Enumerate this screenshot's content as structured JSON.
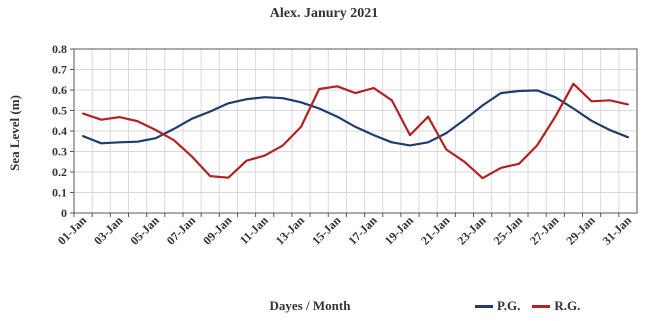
{
  "chart_data": {
    "type": "line",
    "title": "Alex. Janury 2021",
    "xlabel": "Dayes / Month",
    "ylabel": "Sea Level (m)",
    "ylim": [
      0,
      0.8
    ],
    "yticks": [
      "0",
      "0.1",
      "0.2",
      "0.3",
      "0.4",
      "0.5",
      "0.6",
      "0.7",
      "0.8"
    ],
    "yticks_values": [
      0,
      0.1,
      0.2,
      0.3,
      0.4,
      0.5,
      0.6,
      0.7,
      0.8
    ],
    "grid": true,
    "legend_position": "bottom-right",
    "x": [
      "01-Jan",
      "02-Jan",
      "03-Jan",
      "04-Jan",
      "05-Jan",
      "06-Jan",
      "07-Jan",
      "08-Jan",
      "09-Jan",
      "10-Jan",
      "11-Jan",
      "12-Jan",
      "13-Jan",
      "14-Jan",
      "15-Jan",
      "16-Jan",
      "17-Jan",
      "18-Jan",
      "19-Jan",
      "20-Jan",
      "21-Jan",
      "22-Jan",
      "23-Jan",
      "24-Jan",
      "25-Jan",
      "26-Jan",
      "27-Jan",
      "28-Jan",
      "29-Jan",
      "30-Jan",
      "31-Jan"
    ],
    "x_tick_labels": [
      "01-Jan",
      "03-Jan",
      "05-Jan",
      "07-Jan",
      "09-Jan",
      "11-Jan",
      "13-Jan",
      "15-Jan",
      "17-Jan",
      "19-Jan",
      "21-Jan",
      "23-Jan",
      "25-Jan",
      "27-Jan",
      "29-Jan",
      "31-Jan"
    ],
    "series": [
      {
        "name": "P.G.",
        "color": "#1f3c6e",
        "values": [
          0.375,
          0.34,
          0.345,
          0.348,
          0.365,
          0.41,
          0.46,
          0.495,
          0.535,
          0.555,
          0.565,
          0.56,
          0.54,
          0.51,
          0.47,
          0.42,
          0.38,
          0.345,
          0.33,
          0.345,
          0.39,
          0.455,
          0.525,
          0.585,
          0.595,
          0.598,
          0.565,
          0.51,
          0.45,
          0.405,
          0.37
        ]
      },
      {
        "name": "R.G.",
        "color": "#b22222",
        "values": [
          0.485,
          0.455,
          0.468,
          0.448,
          0.405,
          0.355,
          0.275,
          0.18,
          0.172,
          0.255,
          0.28,
          0.33,
          0.42,
          0.605,
          0.618,
          0.585,
          0.61,
          0.55,
          0.38,
          0.47,
          0.31,
          0.25,
          0.17,
          0.22,
          0.24,
          0.33,
          0.47,
          0.63,
          0.545,
          0.55,
          0.53
        ]
      }
    ]
  }
}
